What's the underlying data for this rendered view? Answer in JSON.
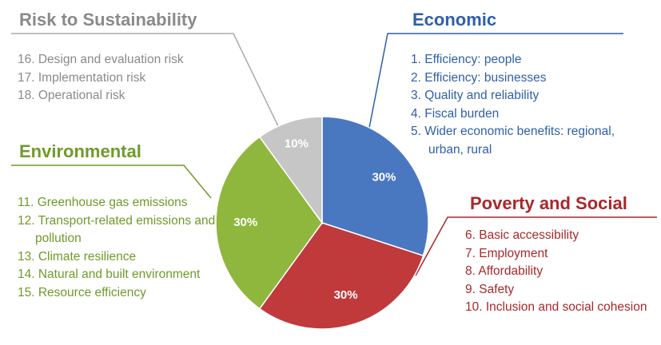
{
  "chart_data": {
    "type": "pie",
    "categories": [
      "Economic",
      "Poverty and Social",
      "Environmental",
      "Risk to Sustainability"
    ],
    "values": [
      30,
      30,
      30,
      10
    ],
    "value_labels": [
      "30%",
      "30%",
      "30%",
      "10%"
    ],
    "colors": [
      "#4a78c0",
      "#c0393b",
      "#8fb73e",
      "#c6c6c6"
    ],
    "heading_colors": [
      "#2f5fa8",
      "#a8282a",
      "#6f9a2a",
      "#8a8a8a"
    ],
    "item_lists": [
      [
        "1. Efficiency: people",
        "2. Efficiency: businesses",
        "3. Quality and reliability",
        "4. Fiscal burden",
        "5. Wider economic benefits: regional, urban, rural"
      ],
      [
        "6. Basic accessibility",
        "7. Employment",
        "8. Affordability",
        "9. Safety",
        "10. Inclusion and social cohesion"
      ],
      [
        "11. Greenhouse gas emissions",
        "12. Transport-related emissions and pollution",
        "13. Climate resilience",
        "14. Natural and built environment",
        "15. Resource efficiency"
      ],
      [
        "16. Design and evaluation risk",
        "17. Implementation risk",
        "18. Operational risk"
      ]
    ]
  }
}
